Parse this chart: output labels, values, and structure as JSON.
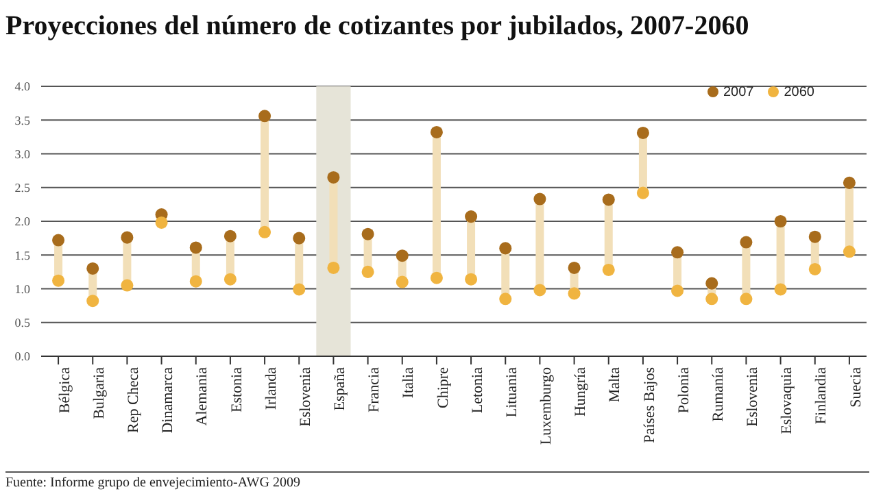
{
  "chart_data": {
    "type": "scatter",
    "title": "Proyecciones del número de cotizantes por jubilados, 2007-2060",
    "categories": [
      "Bélgica",
      "Bulgaria",
      "Rep Checa",
      "Dinamarca",
      "Alemania",
      "Estonia",
      "Irlanda",
      "Eslovenia",
      "España",
      "Francia",
      "Italia",
      "Chipre",
      "Letonia",
      "Lituania",
      "Luxemburgo",
      "Hungría",
      "Malta",
      "Países Bajos",
      "Polonia",
      "Rumanía",
      "Eslovenia",
      "Eslovaquia",
      "Finlandia",
      "Suecia"
    ],
    "series": [
      {
        "name": "2007",
        "color": "#a86c1c",
        "values": [
          1.72,
          1.3,
          1.76,
          2.1,
          1.61,
          1.78,
          3.56,
          1.75,
          2.65,
          1.81,
          1.49,
          3.32,
          2.07,
          1.6,
          2.33,
          1.31,
          2.32,
          3.31,
          1.54,
          1.08,
          1.69,
          2.0,
          1.77,
          2.57
        ]
      },
      {
        "name": "2060",
        "color": "#f0b440",
        "values": [
          1.12,
          0.82,
          1.05,
          1.98,
          1.11,
          1.14,
          1.84,
          0.99,
          1.31,
          1.25,
          1.1,
          1.16,
          1.14,
          0.85,
          0.98,
          0.93,
          1.28,
          2.42,
          0.97,
          0.85,
          0.85,
          0.99,
          1.29,
          1.55
        ]
      }
    ],
    "ylim": [
      0,
      4
    ],
    "yticks": [
      {
        "value": 0,
        "label": "0.0"
      },
      {
        "value": 0.5,
        "label": "0.5"
      },
      {
        "value": 1,
        "label": "1.0"
      },
      {
        "value": 1.5,
        "label": "1.5"
      },
      {
        "value": 2,
        "label": "2.0"
      },
      {
        "value": 2.5,
        "label": "2.5"
      },
      {
        "value": 3,
        "label": "3.0"
      },
      {
        "value": 3.5,
        "label": "3.5"
      },
      {
        "value": 4,
        "label": "4.0"
      }
    ],
    "grid": "y",
    "legend": "top right",
    "marker": "circle",
    "bands": [
      {
        "axis": "x",
        "from": "España",
        "to": "España",
        "color": "#e6e4d8"
      }
    ],
    "annotations": [
      "Fuente: Informe grupo de envejecimiento-AWG 2009"
    ]
  }
}
